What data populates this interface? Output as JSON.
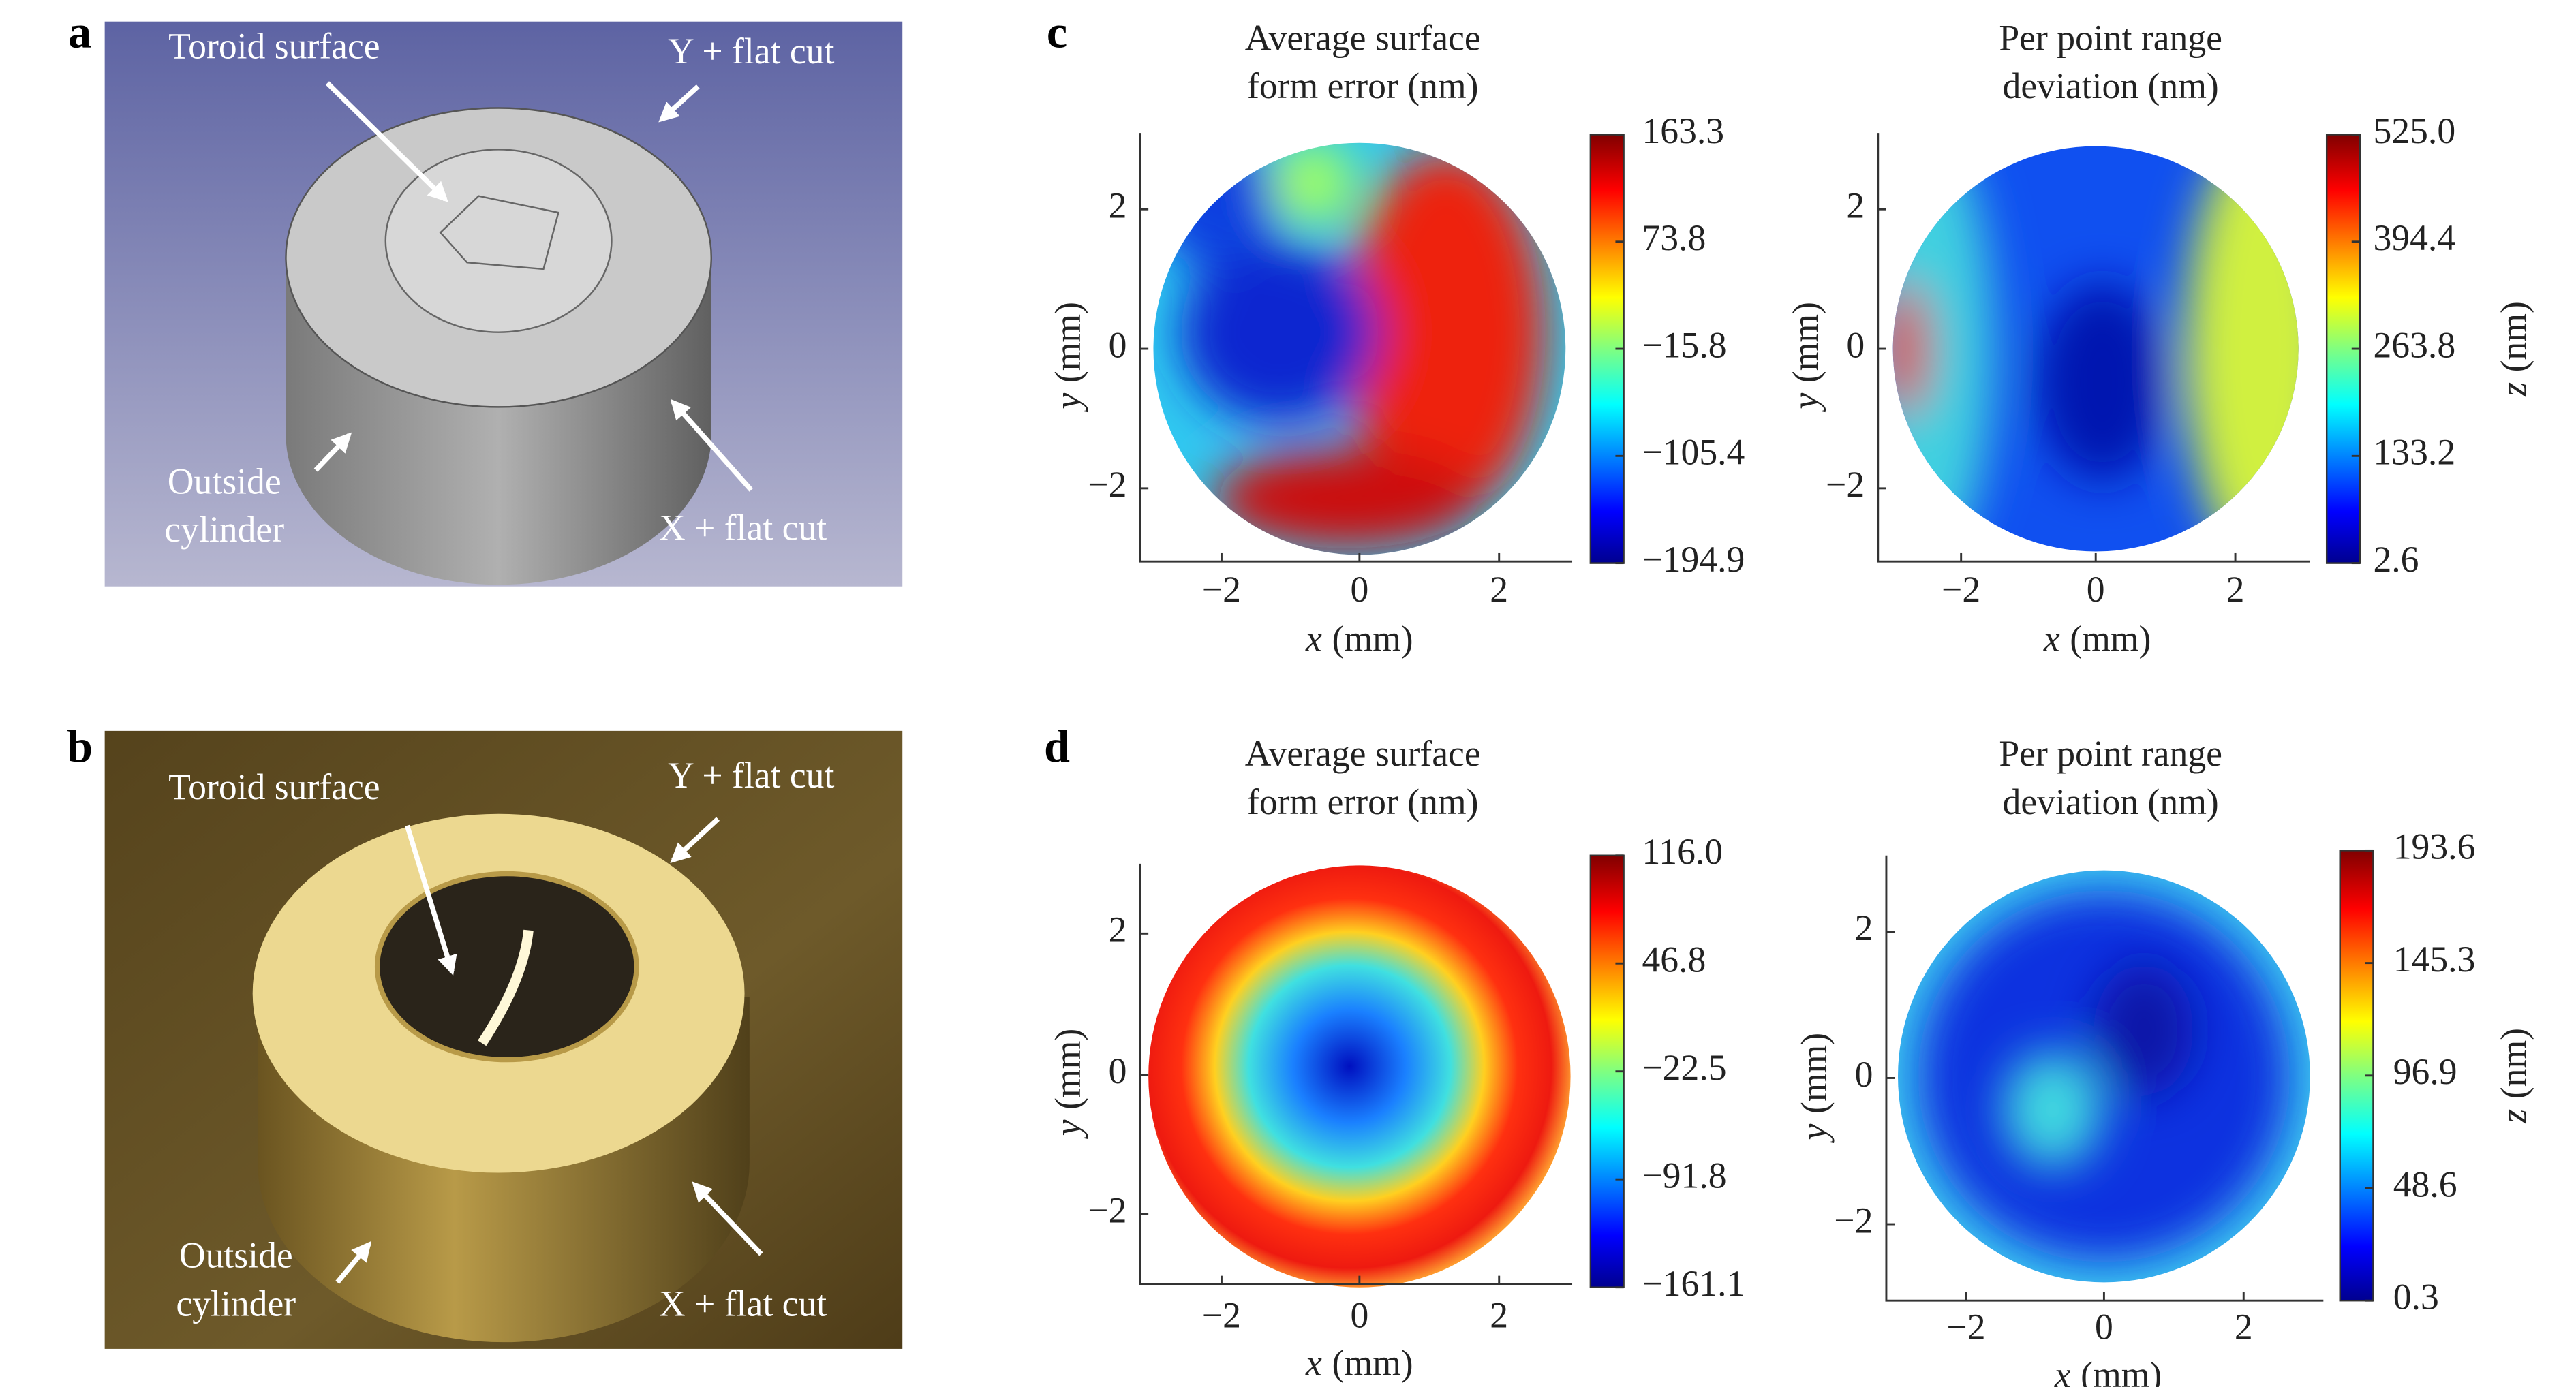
{
  "panels": {
    "a": {
      "label": "a",
      "annotations": {
        "toroid": "Toroid surface",
        "y_cut": "Y + flat cut",
        "outside": [
          "Outside",
          "cylinder"
        ],
        "x_cut": "X + flat cut"
      }
    },
    "b": {
      "label": "b",
      "annotations": {
        "toroid": "Toroid surface",
        "y_cut": "Y + flat cut",
        "outside": [
          "Outside",
          "cylinder"
        ],
        "x_cut": "X + flat cut"
      }
    },
    "c": {
      "label": "c",
      "plots": [
        {
          "title": [
            "Average surface",
            "form error (nm)"
          ],
          "xticks": [
            "−2",
            "0",
            "2"
          ],
          "yticks": [
            "2",
            "0",
            "−2"
          ],
          "xlabel": {
            "var": "x",
            "unit": "(mm)"
          },
          "ylabel": {
            "var": "y",
            "unit": "(mm)"
          },
          "colorbar_ticks": [
            "163.3",
            "73.8",
            "−15.8",
            "−105.4",
            "−194.9"
          ]
        },
        {
          "title": [
            "Per point range",
            "deviation (nm)"
          ],
          "xticks": [
            "−2",
            "0",
            "2"
          ],
          "yticks": [
            "2",
            "0",
            "−2"
          ],
          "xlabel": {
            "var": "x",
            "unit": "(mm)"
          },
          "ylabel": {
            "var": "y",
            "unit": "(mm)"
          },
          "colorbar_ticks": [
            "525.0",
            "394.4",
            "263.8",
            "133.2",
            "2.6"
          ],
          "colorbar_label": {
            "var": "z",
            "unit": "(nm)"
          }
        }
      ]
    },
    "d": {
      "label": "d",
      "plots": [
        {
          "title": [
            "Average surface",
            "form error (nm)"
          ],
          "xticks": [
            "−2",
            "0",
            "2"
          ],
          "yticks": [
            "2",
            "0",
            "−2"
          ],
          "xlabel": {
            "var": "x",
            "unit": "(mm)"
          },
          "ylabel": {
            "var": "y",
            "unit": "(mm)"
          },
          "colorbar_ticks": [
            "116.0",
            "46.8",
            "−22.5",
            "−91.8",
            "−161.1"
          ]
        },
        {
          "title": [
            "Per point range",
            "deviation (nm)"
          ],
          "xticks": [
            "−2",
            "0",
            "2"
          ],
          "yticks": [
            "2",
            "0",
            "−2"
          ],
          "xlabel": {
            "var": "x",
            "unit": "(mm)"
          },
          "ylabel": {
            "var": "y",
            "unit": "(mm)"
          },
          "colorbar_ticks": [
            "193.6",
            "145.3",
            "96.9",
            "48.6",
            "0.3"
          ],
          "colorbar_label": {
            "var": "z",
            "unit": "(nm)"
          }
        }
      ]
    }
  }
}
